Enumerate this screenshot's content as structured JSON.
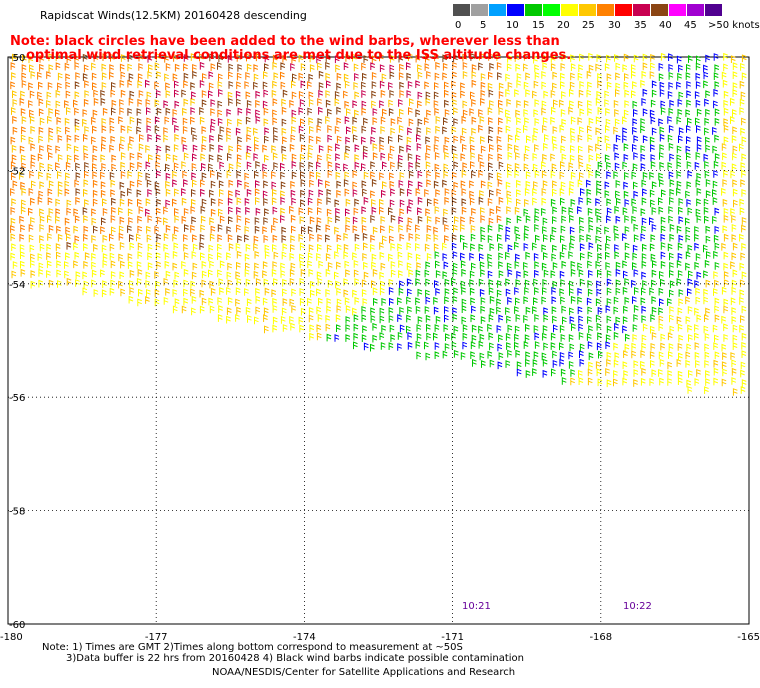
{
  "title": "Rapidscat Winds(12.5KM) 20160428 descending",
  "note": {
    "line1": "Note: black circles have been added to the wind barbs, wherever less than",
    "line2": "optimal wind retrieval conditions are met due to the ISS altitude changes."
  },
  "colorbar": {
    "labels": [
      "0",
      "5",
      "10",
      "15",
      "20",
      "25",
      "30",
      "35",
      "40",
      "45",
      ">50 knots"
    ],
    "colors": [
      "#505050",
      "#a0a0a0",
      "#00a0ff",
      "#0000ff",
      "#00c800",
      "#00ff00",
      "#ffff00",
      "#ffc800",
      "#ff8000",
      "#ff0000",
      "#c80050",
      "#8b4513",
      "#ff00ff",
      "#a000d0",
      "#500090"
    ]
  },
  "axes": {
    "lat_labels": [
      "-50",
      "-52",
      "-54",
      "-56",
      "-58",
      "-60"
    ],
    "lon_labels": [
      "-180",
      "-177",
      "-174",
      "-171",
      "-168",
      "-165"
    ]
  },
  "times": [
    "10:21",
    "10:22"
  ],
  "footer": {
    "line1": "Note: 1) Times are GMT 2)Times along bottom correspond to measurement at ~50S",
    "line2": "3)Data buffer is 22 hrs from 20160428 4) Black wind barbs indicate possible contamination",
    "credit": "NOAA/NESDIS/Center for Satellite Applications and Research"
  }
}
